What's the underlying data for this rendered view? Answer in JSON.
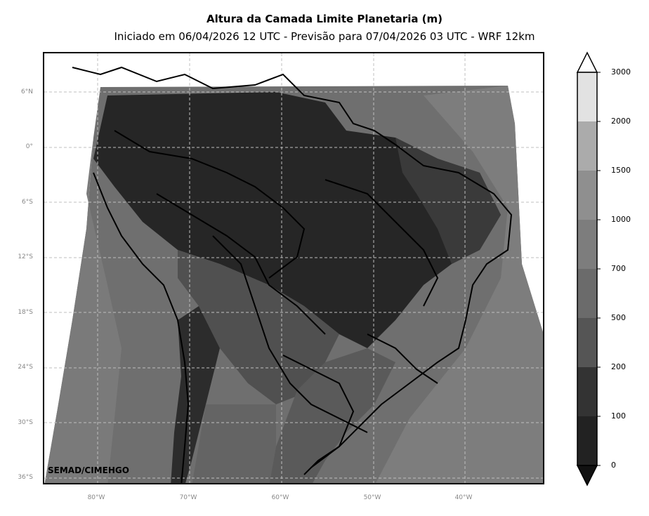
{
  "header": {
    "title": "Altura da Camada Limite Planetaria (m)",
    "subtitle": "Iniciado em 06/04/2026 12 UTC - Previsão para 07/04/2026 03 UTC - WRF 12km"
  },
  "map": {
    "lat_ticks": [
      "6°N",
      "0°",
      "6°S",
      "12°S",
      "18°S",
      "24°S",
      "30°S",
      "36°S"
    ],
    "lon_ticks": [
      "80°W",
      "70°W",
      "60°W",
      "50°W",
      "40°W"
    ],
    "watermark": "SEMAD/CIMEHGO",
    "grid": true,
    "colors": {
      "very_dark": "#222222",
      "dark": "#333333",
      "mid_dark": "#555555",
      "mid": "#6b6b6b",
      "mid_light": "#7d7d7d",
      "light": "#8f8f8f",
      "border": "#000000"
    }
  },
  "colorbar": {
    "labels": [
      "3000",
      "2000",
      "1500",
      "1000",
      "700",
      "500",
      "200",
      "100",
      "0"
    ],
    "colors": [
      "#e2e2e2",
      "#ababab",
      "#8f8f8f",
      "#7d7d7d",
      "#6b6b6b",
      "#555555",
      "#333333",
      "#222222"
    ],
    "extend_max_color": "#ffffff",
    "extend_min_color": "#111111"
  }
}
